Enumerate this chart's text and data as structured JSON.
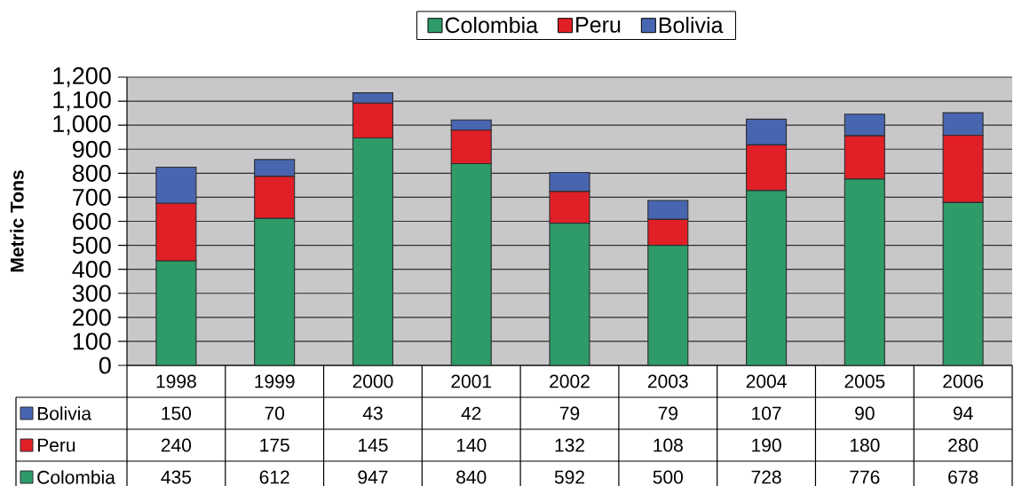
{
  "chart_data": {
    "type": "bar",
    "stacked": true,
    "ylabel": "Metric Tons",
    "categories": [
      "1998",
      "1999",
      "2000",
      "2001",
      "2002",
      "2003",
      "2004",
      "2005",
      "2006"
    ],
    "series": [
      {
        "name": "Colombia",
        "color": "#2e9b68",
        "values": [
          435,
          612,
          947,
          840,
          592,
          500,
          728,
          776,
          678
        ]
      },
      {
        "name": "Peru",
        "color": "#e01f26",
        "values": [
          240,
          175,
          145,
          140,
          132,
          108,
          190,
          180,
          280
        ]
      },
      {
        "name": "Bolivia",
        "color": "#4865b0",
        "values": [
          150,
          70,
          43,
          42,
          79,
          79,
          107,
          90,
          94
        ]
      }
    ],
    "ylim": [
      0,
      1200
    ],
    "yticks": [
      0,
      100,
      200,
      300,
      400,
      500,
      600,
      700,
      800,
      900,
      {
        "value": 1000,
        "label": "1,000"
      },
      {
        "value": 1100,
        "label": "1,100"
      },
      {
        "value": 1200,
        "label": "1,200"
      }
    ],
    "grid": "y",
    "legend": "top",
    "data_labels": true
  }
}
